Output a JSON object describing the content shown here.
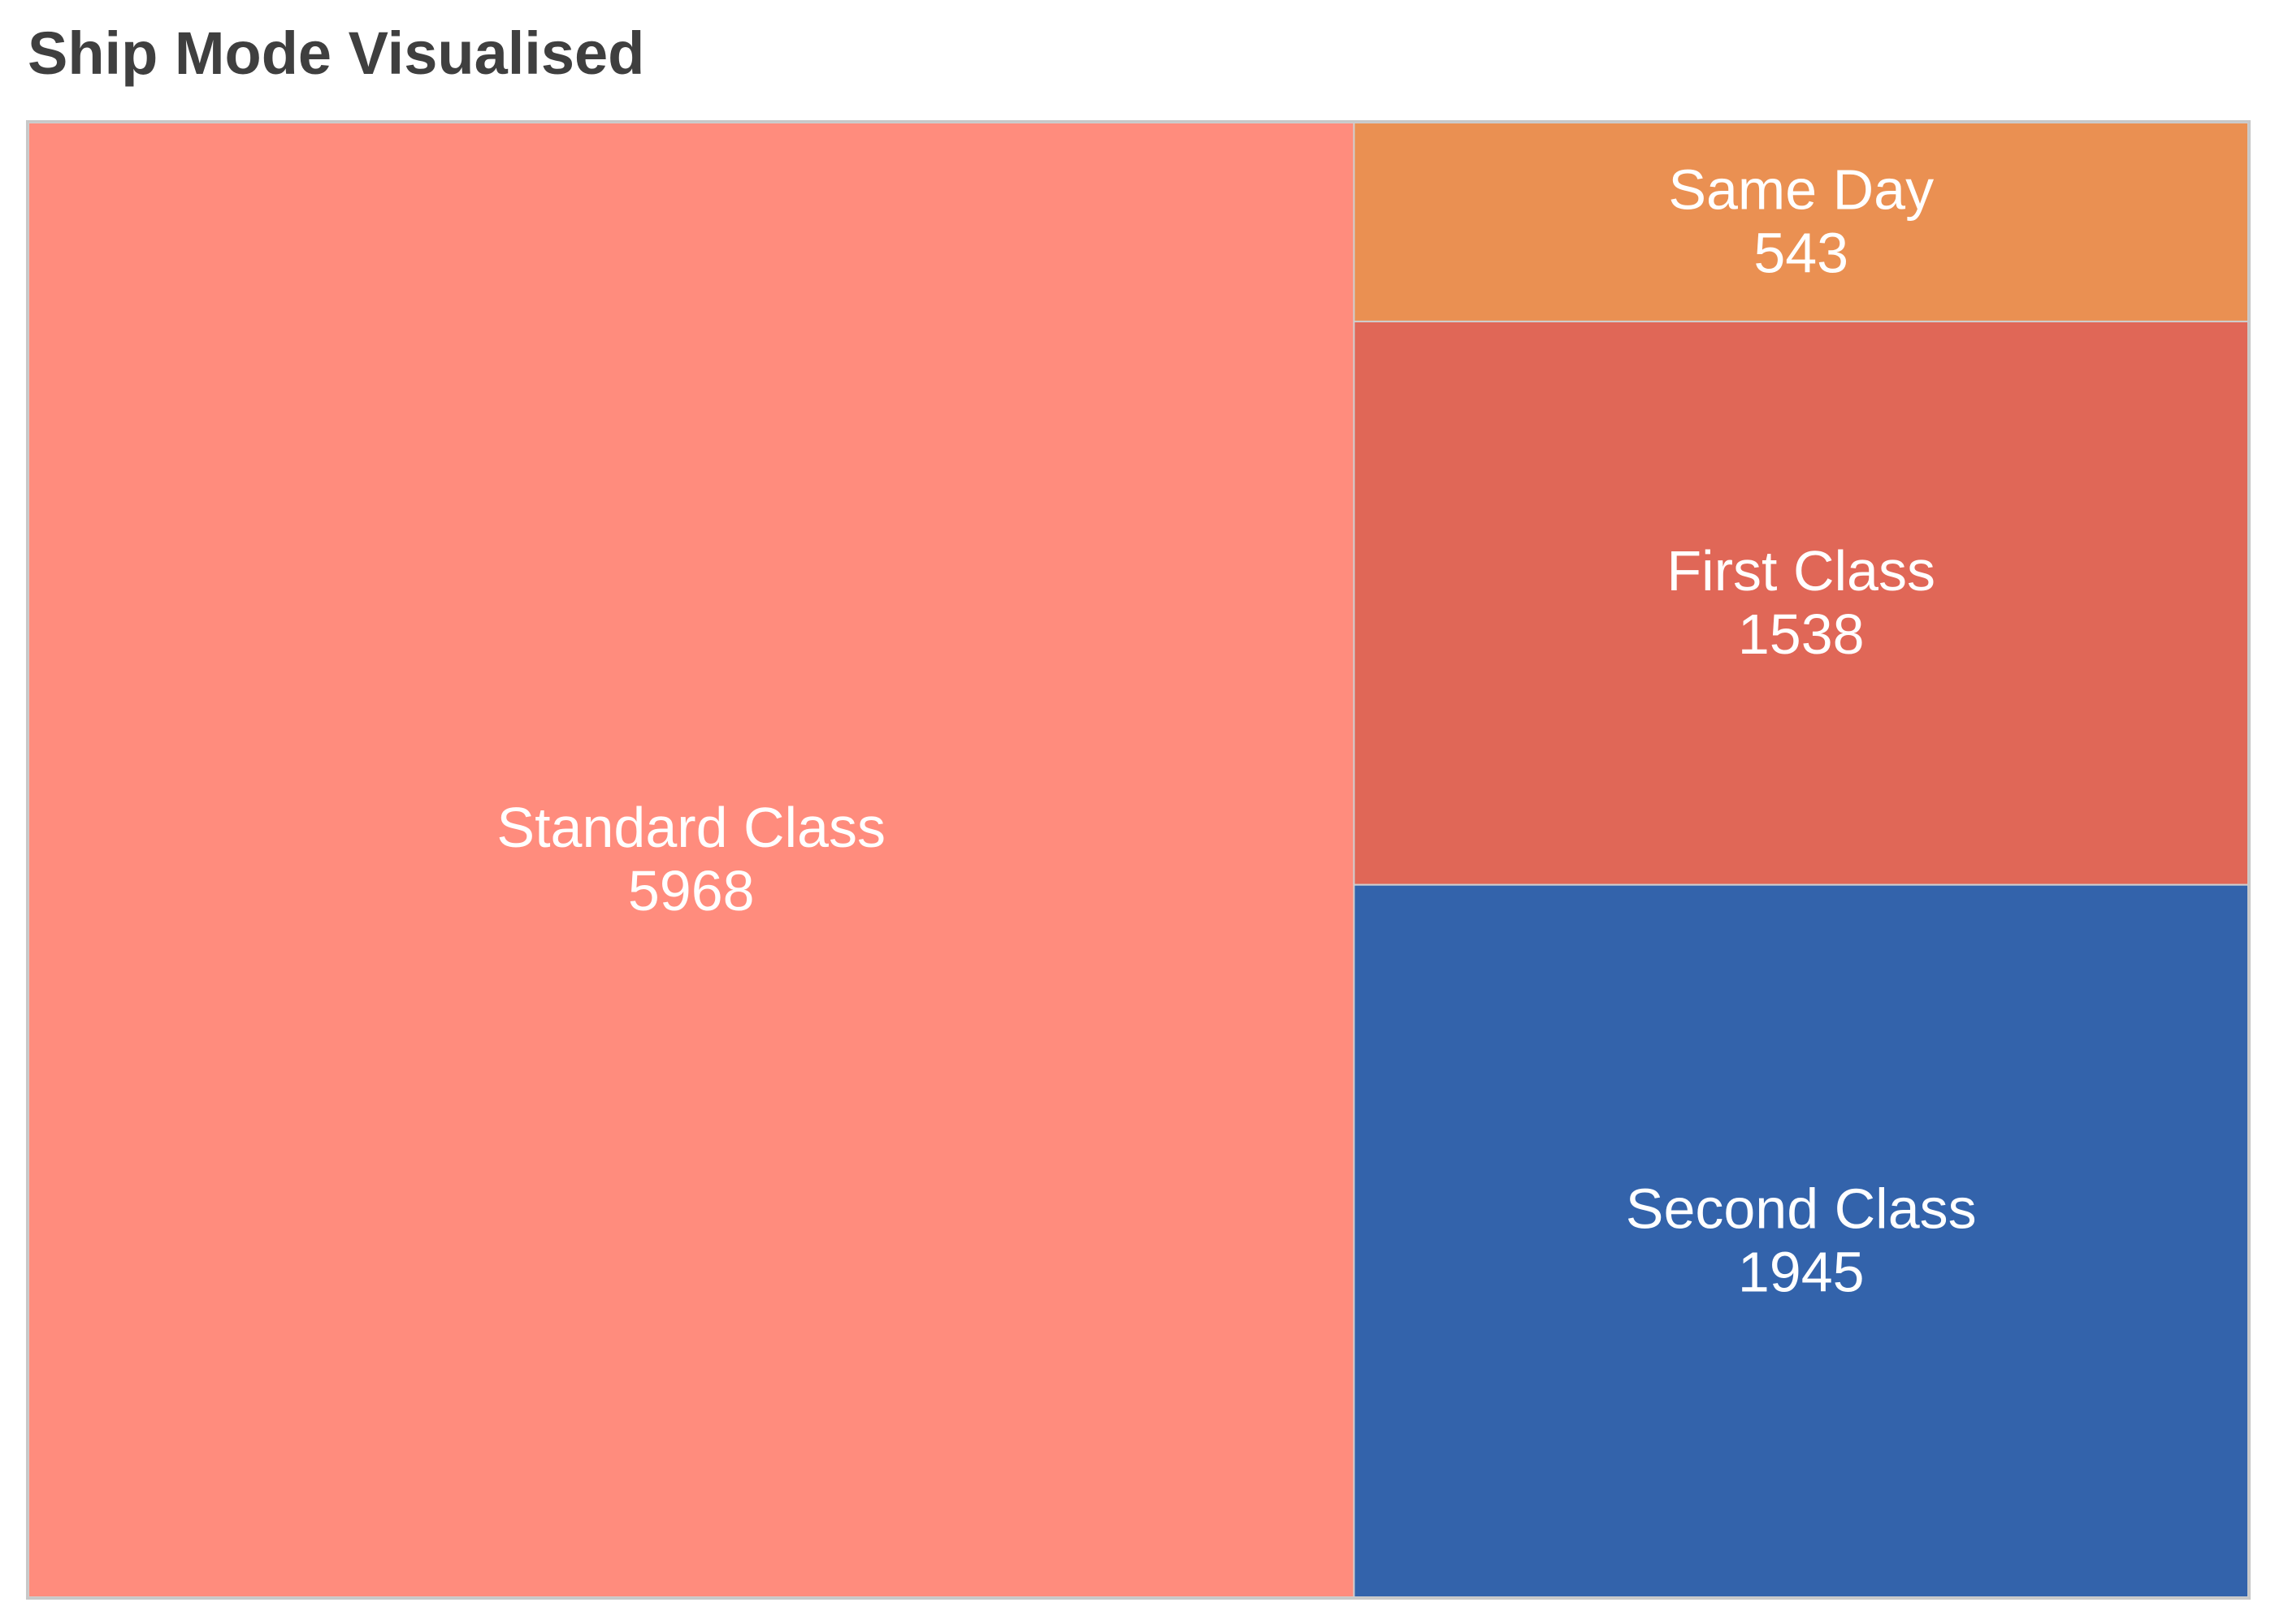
{
  "chart_data": {
    "type": "treemap",
    "title": "Ship Mode Visualised",
    "items": [
      {
        "label": "Standard Class",
        "value": 5968,
        "color": "#ff8c7d"
      },
      {
        "label": "Second Class",
        "value": 1945,
        "color": "#3363ab"
      },
      {
        "label": "First Class",
        "value": 1538,
        "color": "#e06757"
      },
      {
        "label": "Same Day",
        "value": 543,
        "color": "#ea9052"
      }
    ],
    "label_color": "#ffffff",
    "tile_border_color": "#cfcfcf"
  }
}
